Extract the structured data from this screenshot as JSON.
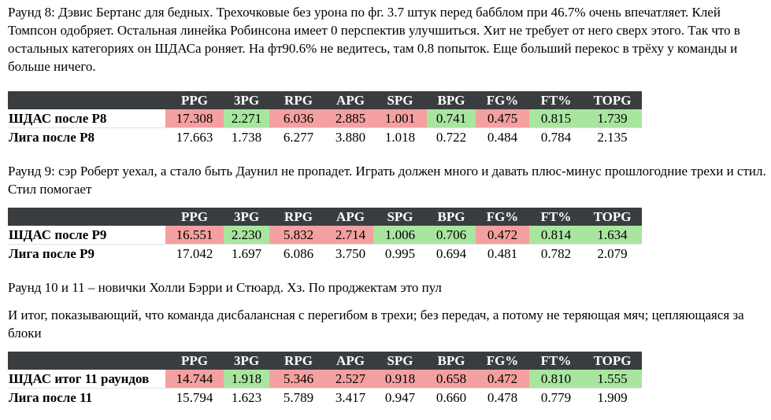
{
  "paragraphs": [
    "Раунд 8: Дэвис Бертанс для бедных. Трехочковые без урона по фг. 3.7 штук перед бабблом при 46.7% очень впечатляет. Клей Томпсон одобряет. Остальная линейка Робинсона имеет 0 перспектив улучшиться. Хит не требует от него сверх этого. Так что в остальных категориях он ШДАСа роняет. На фт90.6% не ведитесь, там 0.8 попыток. Еще больший перекос в трёху у команды и больше ничего.",
    "Раунд 9: сэр Роберт уехал, а стало быть Даунил не пропадет. Играть должен много и давать плюс-минус прошлогодние трехи и стил. Стил помогает",
    "Раунд 10 и 11 – новички Холли Бэрри и Стюард. Хз. По проджектам это пул",
    "И итог, показывающий, что команда дисбалансная с перегибом в трехи; без передач, а потому не теряющая мяч; цепляющаяся за блоки"
  ],
  "columns": [
    "PPG",
    "3PG",
    "RPG",
    "APG",
    "SPG",
    "BPG",
    "FG%",
    "FT%",
    "TOPG"
  ],
  "tables": [
    {
      "team_label": "ШДАС после Р8",
      "team_values": [
        "17.308",
        "2.271",
        "6.036",
        "2.885",
        "1.001",
        "0.741",
        "0.475",
        "0.815",
        "1.739"
      ],
      "team_colors": [
        "red",
        "green",
        "red",
        "red",
        "red",
        "green",
        "red",
        "green",
        "green"
      ],
      "league_label": "Лига после Р8",
      "league_values": [
        "17.663",
        "1.738",
        "6.277",
        "3.880",
        "1.018",
        "0.722",
        "0.484",
        "0.784",
        "2.135"
      ]
    },
    {
      "team_label": "ШДАС после Р9",
      "team_values": [
        "16.551",
        "2.230",
        "5.832",
        "2.714",
        "1.006",
        "0.706",
        "0.472",
        "0.814",
        "1.634"
      ],
      "team_colors": [
        "red",
        "green",
        "red",
        "red",
        "green",
        "green",
        "red",
        "green",
        "green"
      ],
      "league_label": "Лига после Р9",
      "league_values": [
        "17.042",
        "1.697",
        "6.086",
        "3.750",
        "0.995",
        "0.694",
        "0.481",
        "0.782",
        "2.079"
      ]
    },
    {
      "team_label": "ШДАС итог 11 раундов",
      "team_values": [
        "14.744",
        "1.918",
        "5.346",
        "2.527",
        "0.918",
        "0.658",
        "0.472",
        "0.810",
        "1.555"
      ],
      "team_colors": [
        "red",
        "green",
        "red",
        "red",
        "red",
        "red",
        "red",
        "green",
        "green"
      ],
      "league_label": "Лига после 11",
      "league_values": [
        "15.794",
        "1.623",
        "5.789",
        "3.417",
        "0.947",
        "0.660",
        "0.478",
        "0.779",
        "1.909"
      ]
    }
  ],
  "colors": {
    "header_bg": "#3a3d40",
    "red": "#f4a0a0",
    "green": "#a8e6a0"
  }
}
